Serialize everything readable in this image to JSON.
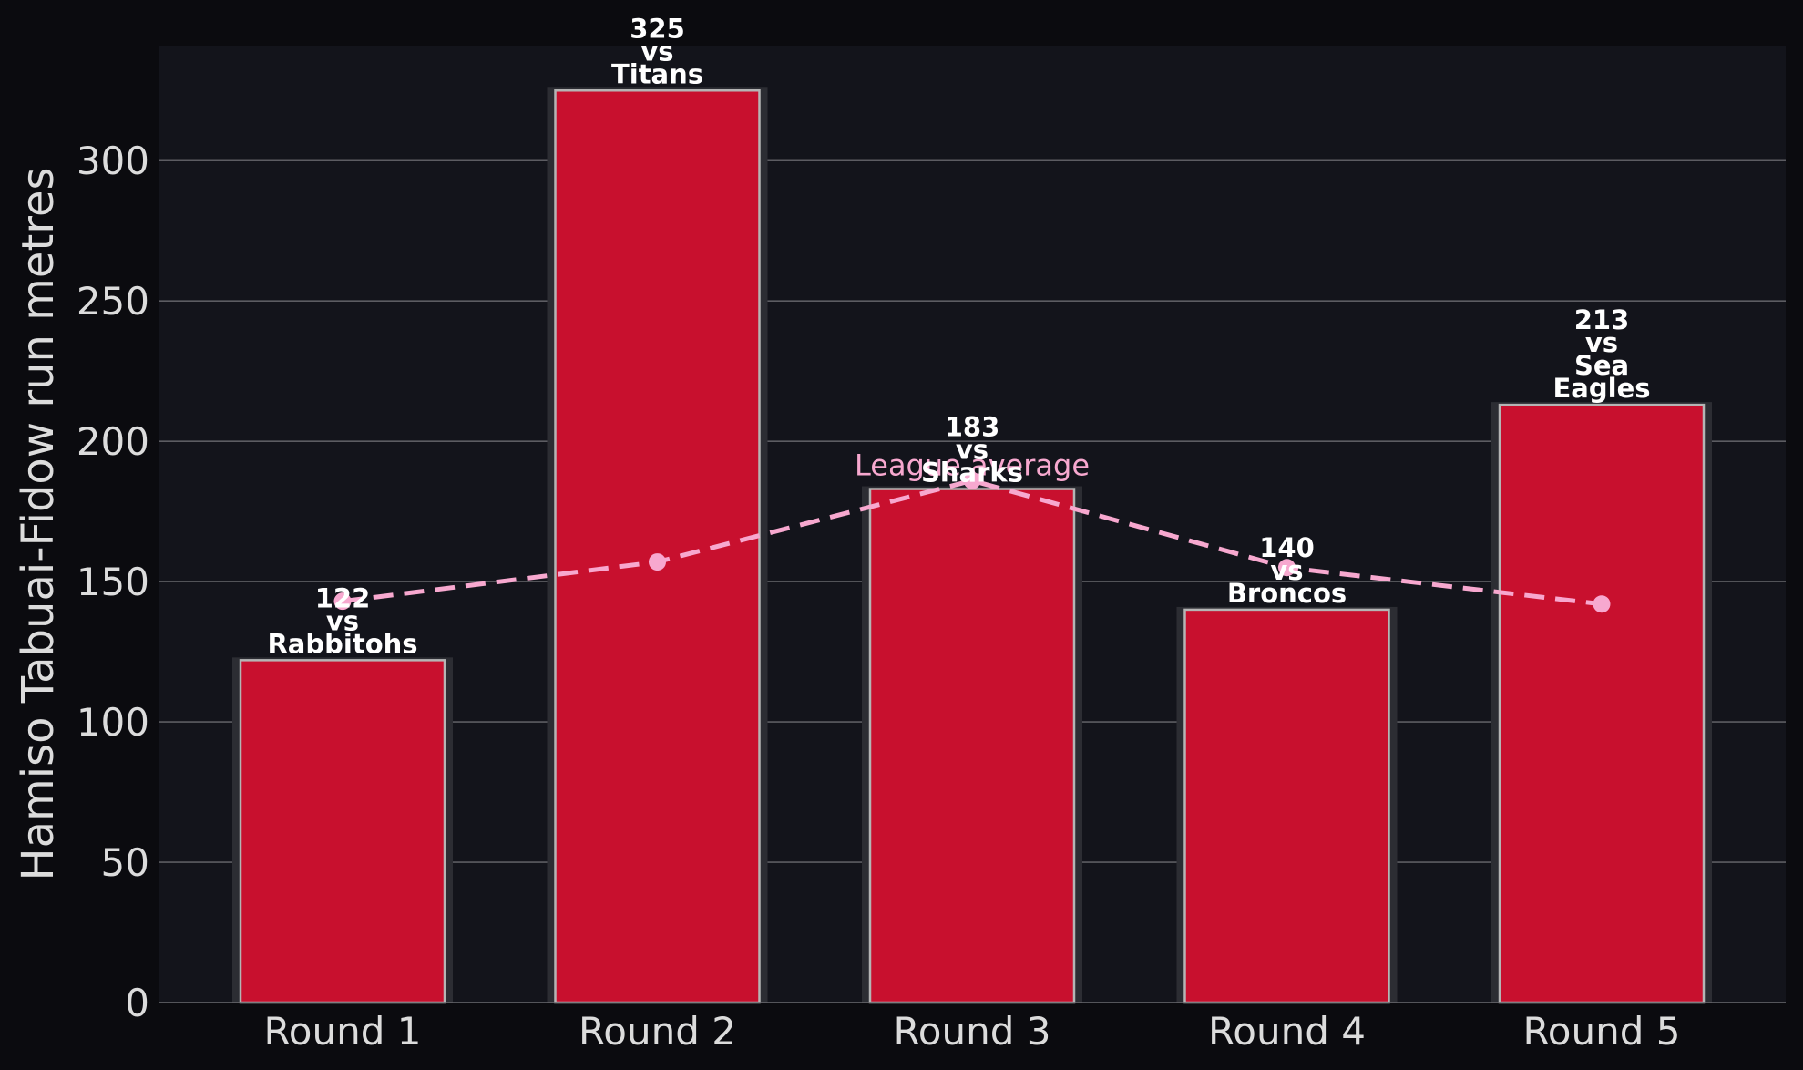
{
  "chart_data": {
    "type": "bar",
    "categories": [
      "Round 1",
      "Round 2",
      "Round 3",
      "Round 4",
      "Round 5"
    ],
    "series": [
      {
        "values": [
          122,
          325,
          183,
          140,
          213
        ],
        "labels": [
          [
            "122",
            "vs",
            "Rabbitohs"
          ],
          [
            "325",
            "vs",
            "Titans"
          ],
          [
            "183",
            "vs",
            "Sharks"
          ],
          [
            "140",
            "vs",
            "Broncos"
          ],
          [
            "213",
            "vs",
            "Sea",
            "Eagles"
          ]
        ]
      },
      {
        "name": "League average",
        "type": "line",
        "style": "dashed",
        "values": [
          143,
          157,
          186,
          155,
          142
        ]
      }
    ],
    "title": "",
    "xlabel": "",
    "ylabel": "Hamiso Tabuai-Fidow run metres",
    "ylim": [
      0,
      341
    ],
    "yticks": [
      0,
      50,
      100,
      150,
      200,
      250,
      300
    ],
    "grid": "horizontal",
    "colors": {
      "page_background": "#0b0b0f",
      "plot_background": "#13141b",
      "bar": "#c8102e",
      "bar_edge": "#b5b5b5",
      "bar_shadow": "#2c2d33",
      "average_line": "#f7a8cf",
      "grid": "#5c5c62",
      "text": "#dcdcdc"
    }
  }
}
